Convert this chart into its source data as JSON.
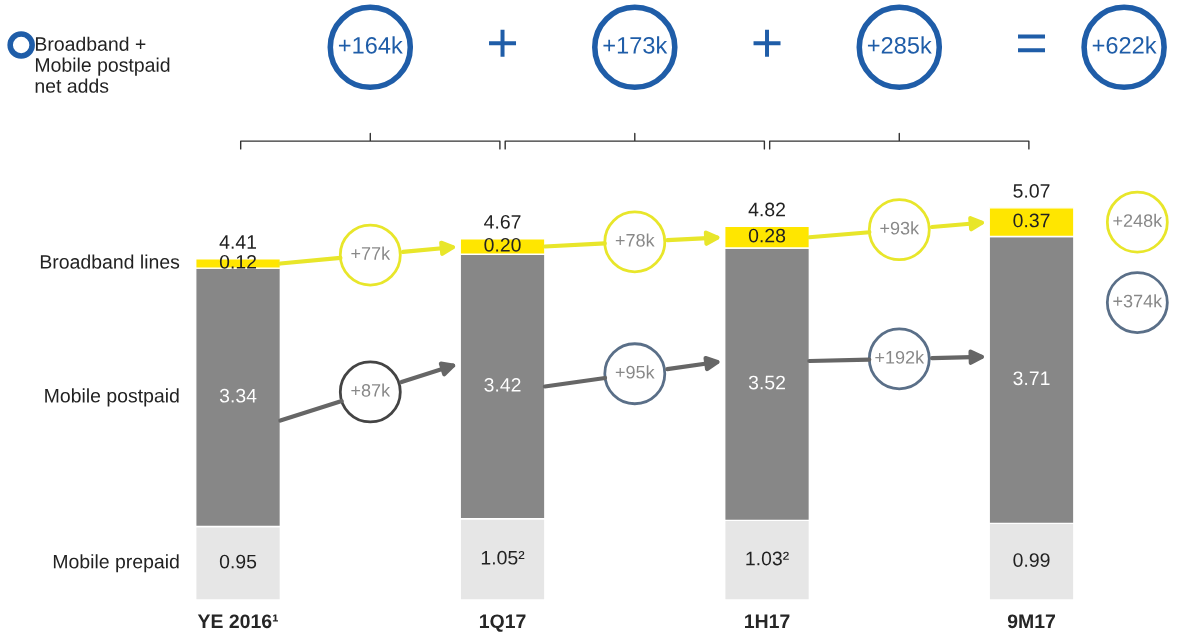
{
  "chart_data": {
    "type": "bar",
    "stacked": true,
    "categories": [
      "YE 2016¹",
      "1Q17",
      "1H17",
      "9M17"
    ],
    "series": [
      {
        "name": "Mobile prepaid",
        "color": "#e6e6e6",
        "values": [
          0.95,
          1.05,
          1.03,
          0.99
        ],
        "value_labels": [
          "0.95",
          "1.05²",
          "1.03²",
          "0.99"
        ]
      },
      {
        "name": "Mobile postpaid",
        "color": "#878787",
        "values": [
          3.34,
          3.42,
          3.52,
          3.71
        ]
      },
      {
        "name": "Broadband lines",
        "color": "#ffe600",
        "values": [
          0.12,
          0.2,
          0.28,
          0.37
        ],
        "value_labels": [
          "0.12",
          "0.20",
          "0.28",
          "0.37"
        ]
      }
    ],
    "data_labels": true,
    "totals": [
      "4.41",
      "4.67",
      "4.82",
      "5.07"
    ],
    "annotations": [
      "Broadband +\nMobile postpaid\nnet adds",
      "+164k",
      "+",
      "+173k",
      "+",
      "+285k",
      "=",
      "+622k",
      "+77k",
      "+78k",
      "+93k",
      "+248k",
      "+87k",
      "+95k",
      "+192k",
      "+374k"
    ],
    "legend": false,
    "grid": false
  }
}
